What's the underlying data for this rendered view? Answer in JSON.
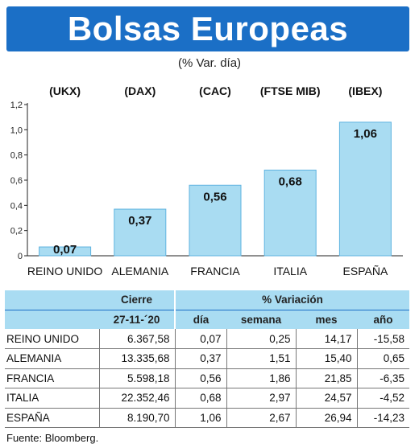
{
  "header": {
    "title": "Bolsas Europeas",
    "subtitle": "(% Var. día)"
  },
  "chart_data": {
    "type": "bar",
    "indices": [
      "(UKX)",
      "(DAX)",
      "(CAC)",
      "(FTSE MIB)",
      "(IBEX)"
    ],
    "categories": [
      "REINO UNIDO",
      "ALEMANIA",
      "FRANCIA",
      "ITALIA",
      "ESPAÑA"
    ],
    "values": [
      0.07,
      0.37,
      0.56,
      0.68,
      1.06
    ],
    "value_labels": [
      "0,07",
      "0,37",
      "0,56",
      "0,68",
      "1,06"
    ],
    "yticks": [
      0,
      0.2,
      0.4,
      0.6,
      0.8,
      1.0,
      1.2
    ],
    "ytick_labels": [
      "0",
      "0,2",
      "0,4",
      "0,6",
      "0,8",
      "1,0",
      "1,2"
    ],
    "ylim": [
      0,
      1.2
    ],
    "bar_color": "#a9dcf2",
    "bar_border": "#5fb3e0"
  },
  "table": {
    "header_cierre": "Cierre",
    "header_date": "27-11-´20",
    "header_variacion": "% Variación",
    "col_dia": "día",
    "col_semana": "semana",
    "col_mes": "mes",
    "col_anio": "año",
    "rows": [
      {
        "name": "REINO UNIDO",
        "cierre": "6.367,58",
        "dia": "0,07",
        "semana": "0,25",
        "mes": "14,17",
        "anio": "-15,58"
      },
      {
        "name": "ALEMANIA",
        "cierre": "13.335,68",
        "dia": "0,37",
        "semana": "1,51",
        "mes": "15,40",
        "anio": "0,65"
      },
      {
        "name": "FRANCIA",
        "cierre": "5.598,18",
        "dia": "0,56",
        "semana": "1,86",
        "mes": "21,85",
        "anio": "-6,35"
      },
      {
        "name": "ITALIA",
        "cierre": "22.352,46",
        "dia": "0,68",
        "semana": "2,97",
        "mes": "24,57",
        "anio": "-4,52"
      },
      {
        "name": "ESPAÑA",
        "cierre": "8.190,70",
        "dia": "1,06",
        "semana": "2,67",
        "mes": "26,94",
        "anio": "-14,23"
      }
    ]
  },
  "source": "Fuente: Bloomberg."
}
